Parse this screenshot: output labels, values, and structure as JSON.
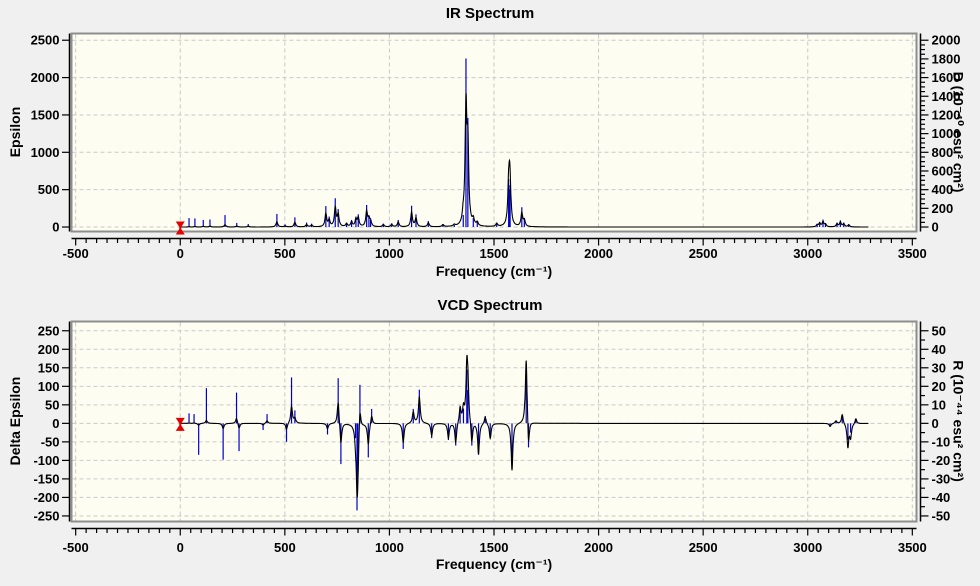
{
  "window": {
    "background": "#f0f0f0"
  },
  "colors": {
    "plot_bg": "#fdfdf2",
    "frame": "#8e8e8e",
    "grid": "#c9c9c9",
    "stick": "#0000cd",
    "envelope": "#000000",
    "marker": "#e60000",
    "axis": "#000000",
    "text": "#000000"
  },
  "chart_data": [
    {
      "type": "line",
      "title": "IR Spectrum",
      "xlabel": "Frequency (cm⁻¹)",
      "ylabel": "Epsilon",
      "y2label": "D (10⁻⁴⁰ esu² cm²)",
      "legend": null,
      "grid": "dashed",
      "xlim": [
        -520,
        3520
      ],
      "ylim": [
        -60,
        2590
      ],
      "xticks": [
        -500,
        0,
        500,
        1000,
        1500,
        2000,
        2500,
        3000,
        3500
      ],
      "xminor_step": 50,
      "yticks": [
        0,
        500,
        1000,
        1500,
        2000,
        2500
      ],
      "y2ticks": [
        0,
        200,
        400,
        600,
        800,
        1000,
        1200,
        1400,
        1600,
        1800,
        2000
      ],
      "y2minor_step": 50,
      "y2_scale": 1.25,
      "envelope": {
        "gamma": 5,
        "scale": 0.62,
        "nu_norm": 700,
        "nu_clamp": 1.1,
        "range": [
          0,
          3290
        ]
      },
      "marker": {
        "x": 0,
        "y": 0
      },
      "peaks": [
        [
          42,
          120
        ],
        [
          70,
          115
        ],
        [
          110,
          95
        ],
        [
          142,
          100
        ],
        [
          214,
          160
        ],
        [
          270,
          55
        ],
        [
          325,
          40
        ],
        [
          462,
          175
        ],
        [
          501,
          35
        ],
        [
          548,
          130
        ],
        [
          604,
          60
        ],
        [
          628,
          45
        ],
        [
          696,
          280
        ],
        [
          712,
          140
        ],
        [
          741,
          385
        ],
        [
          755,
          240
        ],
        [
          795,
          60
        ],
        [
          819,
          95
        ],
        [
          840,
          140
        ],
        [
          851,
          170
        ],
        [
          891,
          295
        ],
        [
          902,
          140
        ],
        [
          910,
          95
        ],
        [
          971,
          45
        ],
        [
          1011,
          50
        ],
        [
          1042,
          95
        ],
        [
          1106,
          285
        ],
        [
          1127,
          170
        ],
        [
          1186,
          80
        ],
        [
          1256,
          40
        ],
        [
          1310,
          30
        ],
        [
          1353,
          160
        ],
        [
          1366,
          2256
        ],
        [
          1375,
          1460
        ],
        [
          1401,
          120
        ],
        [
          1420,
          70
        ],
        [
          1513,
          60
        ],
        [
          1570,
          640
        ],
        [
          1574,
          500
        ],
        [
          1577,
          560
        ],
        [
          1633,
          265
        ],
        [
          1645,
          120
        ],
        [
          3045,
          40
        ],
        [
          3057,
          70
        ],
        [
          3073,
          100
        ],
        [
          3085,
          50
        ],
        [
          3140,
          60
        ],
        [
          3156,
          90
        ],
        [
          3172,
          60
        ],
        [
          3196,
          40
        ]
      ]
    },
    {
      "type": "line",
      "title": "VCD Spectrum",
      "xlabel": "Frequency (cm⁻¹)",
      "ylabel": "Delta Epsilon",
      "y2label": "R (10⁻⁴⁴ esu² cm²)",
      "legend": null,
      "grid": "dashed",
      "xlim": [
        -520,
        3520
      ],
      "ylim": [
        -265,
        275
      ],
      "xticks": [
        -500,
        0,
        500,
        1000,
        1500,
        2000,
        2500,
        3000,
        3500
      ],
      "xminor_step": 50,
      "yticks": [
        -250,
        -200,
        -150,
        -100,
        -50,
        0,
        50,
        100,
        150,
        200,
        250
      ],
      "y2ticks": [
        -50,
        -40,
        -30,
        -20,
        -10,
        0,
        10,
        20,
        30,
        40,
        50
      ],
      "y2minor_step": 5,
      "y2_scale": 5,
      "envelope": {
        "gamma": 5,
        "scale": 0.9,
        "nu_norm": 1300,
        "nu_clamp": 1.6,
        "range": [
          0,
          3290
        ]
      },
      "marker": {
        "x": 0,
        "y": 0
      },
      "peaks": [
        [
          42,
          27
        ],
        [
          66,
          25
        ],
        [
          88,
          -85
        ],
        [
          125,
          95
        ],
        [
          205,
          -98
        ],
        [
          269,
          83
        ],
        [
          281,
          -75
        ],
        [
          396,
          -18
        ],
        [
          415,
          25
        ],
        [
          508,
          -50
        ],
        [
          532,
          124
        ],
        [
          548,
          35
        ],
        [
          704,
          -30
        ],
        [
          755,
          122
        ],
        [
          768,
          -110
        ],
        [
          838,
          -40
        ],
        [
          845,
          -235
        ],
        [
          849,
          -160
        ],
        [
          859,
          104
        ],
        [
          899,
          -92
        ],
        [
          915,
          39
        ],
        [
          1066,
          -69
        ],
        [
          1114,
          39
        ],
        [
          1143,
          91
        ],
        [
          1202,
          -40
        ],
        [
          1282,
          -45
        ],
        [
          1317,
          -60
        ],
        [
          1338,
          45
        ],
        [
          1354,
          40
        ],
        [
          1370,
          145
        ],
        [
          1375,
          90
        ],
        [
          1394,
          -60
        ],
        [
          1426,
          -85
        ],
        [
          1458,
          20
        ],
        [
          1482,
          -40
        ],
        [
          1586,
          -116
        ],
        [
          1654,
          160
        ],
        [
          1665,
          -65
        ],
        [
          3107,
          -6
        ],
        [
          3135,
          5
        ],
        [
          3165,
          18
        ],
        [
          3192,
          -44
        ],
        [
          3205,
          -25
        ],
        [
          3230,
          10
        ]
      ]
    }
  ]
}
